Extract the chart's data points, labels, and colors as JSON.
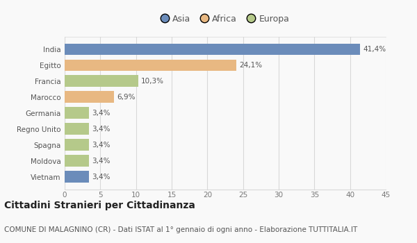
{
  "categories": [
    "India",
    "Egitto",
    "Francia",
    "Marocco",
    "Germania",
    "Regno Unito",
    "Spagna",
    "Moldova",
    "Vietnam"
  ],
  "values": [
    41.4,
    24.1,
    10.3,
    6.9,
    3.4,
    3.4,
    3.4,
    3.4,
    3.4
  ],
  "colors": [
    "#6b8cba",
    "#e8b882",
    "#b5c98a",
    "#e8b882",
    "#b5c98a",
    "#b5c98a",
    "#b5c98a",
    "#b5c98a",
    "#6b8cba"
  ],
  "labels": [
    "41,4%",
    "24,1%",
    "10,3%",
    "6,9%",
    "3,4%",
    "3,4%",
    "3,4%",
    "3,4%",
    "3,4%"
  ],
  "legend": [
    {
      "label": "Asia",
      "color": "#6b8cba"
    },
    {
      "label": "Africa",
      "color": "#e8b882"
    },
    {
      "label": "Europa",
      "color": "#b5c98a"
    }
  ],
  "xlim": [
    0,
    45
  ],
  "xticks": [
    0,
    5,
    10,
    15,
    20,
    25,
    30,
    35,
    40,
    45
  ],
  "title": "Cittadini Stranieri per Cittadinanza",
  "subtitle": "COMUNE DI MALAGNINO (CR) - Dati ISTAT al 1° gennaio di ogni anno - Elaborazione TUTTITALIA.IT",
  "background_color": "#f9f9f9",
  "grid_color": "#d8d8d8",
  "bar_height": 0.72,
  "title_fontsize": 10,
  "subtitle_fontsize": 7.5,
  "label_fontsize": 7.5,
  "tick_fontsize": 7.5,
  "legend_fontsize": 9
}
